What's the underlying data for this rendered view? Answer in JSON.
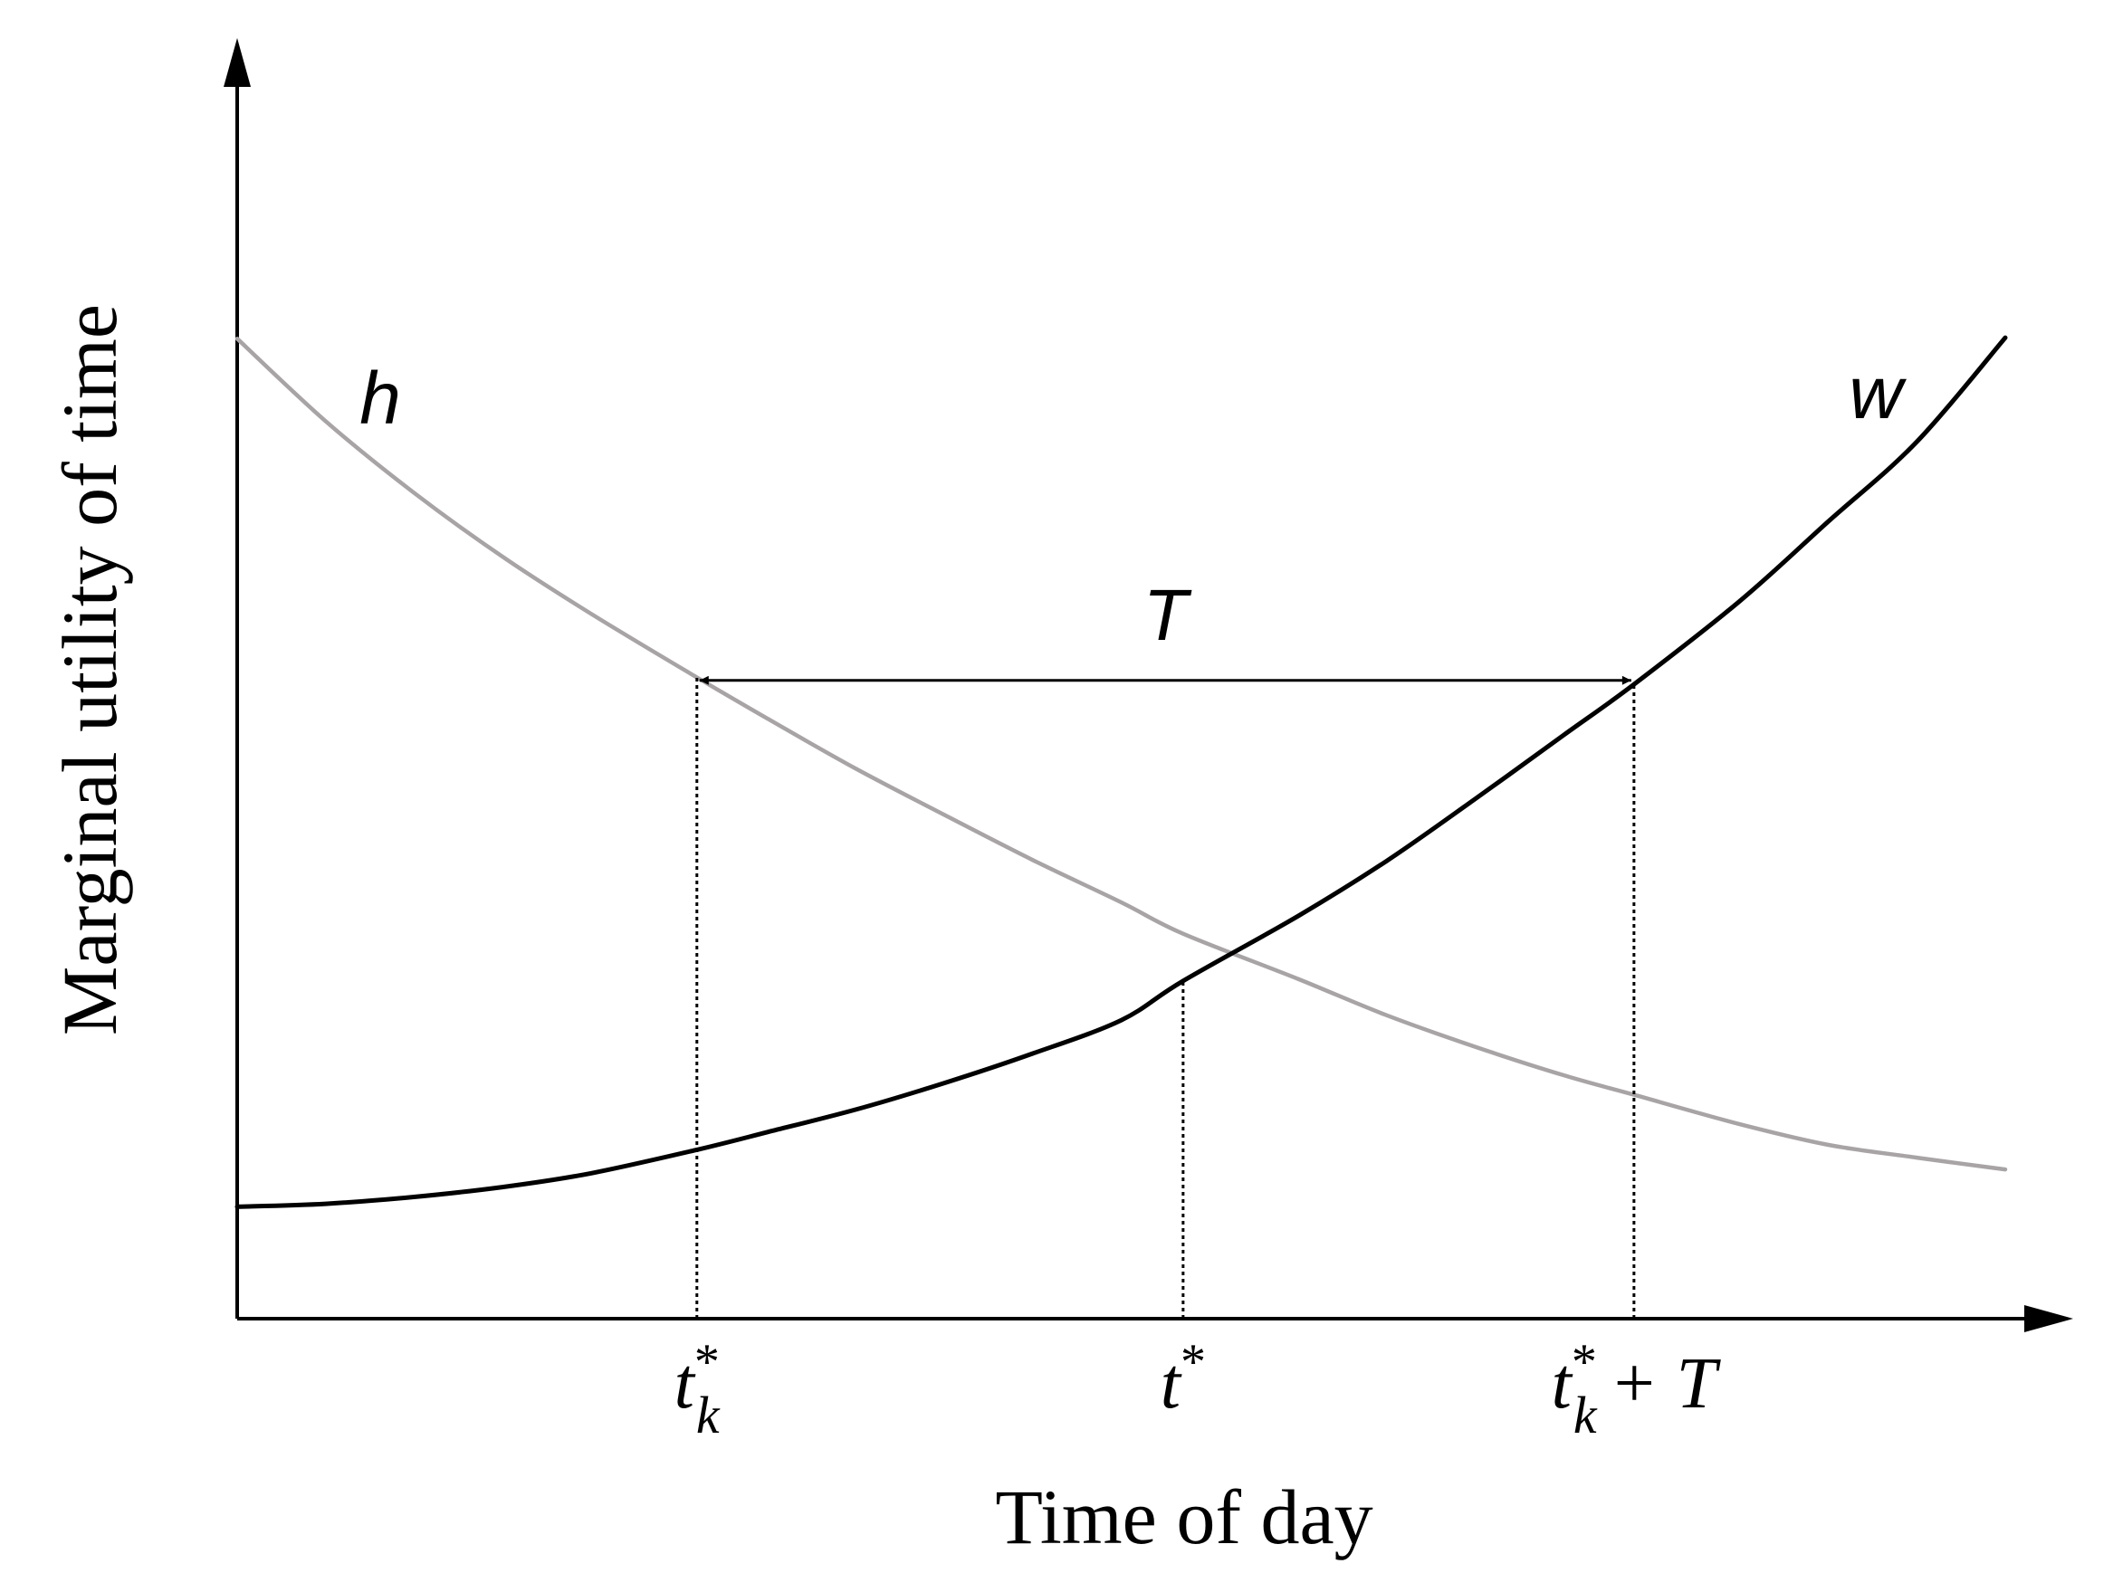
{
  "chart_data": {
    "type": "line",
    "xlabel": "Time of day",
    "ylabel": "Marginal utility of time",
    "xlim": [
      0,
      1
    ],
    "ylim": [
      0,
      1
    ],
    "grid": false,
    "series": [
      {
        "name": "h",
        "color": "#a8a4a6",
        "x": [
          0.0,
          0.05,
          0.1,
          0.15,
          0.2,
          0.26,
          0.3,
          0.35,
          0.4,
          0.45,
          0.5,
          0.535,
          0.6,
          0.65,
          0.7,
          0.75,
          0.79,
          0.85,
          0.9,
          0.95,
          1.0
        ],
        "y": [
          0.998,
          0.914,
          0.841,
          0.776,
          0.718,
          0.653,
          0.611,
          0.56,
          0.513,
          0.467,
          0.424,
          0.392,
          0.346,
          0.309,
          0.277,
          0.248,
          0.228,
          0.198,
          0.177,
          0.164,
          0.152
        ]
      },
      {
        "name": "w",
        "color": "#000000",
        "x": [
          0.0,
          0.05,
          0.1,
          0.15,
          0.2,
          0.26,
          0.3,
          0.35,
          0.4,
          0.45,
          0.5,
          0.535,
          0.6,
          0.65,
          0.7,
          0.75,
          0.79,
          0.85,
          0.9,
          0.95,
          1.0
        ],
        "y": [
          0.114,
          0.117,
          0.124,
          0.134,
          0.148,
          0.172,
          0.19,
          0.213,
          0.24,
          0.27,
          0.304,
          0.344,
          0.41,
          0.466,
          0.529,
          0.594,
          0.646,
          0.731,
          0.812,
          0.893,
          0.999
        ]
      }
    ],
    "markers": [
      {
        "label_base": "t",
        "label_sup": "*",
        "label_sub": "k",
        "label_tail": "",
        "x": 0.26,
        "y_curve": 0.653
      },
      {
        "label_base": "t",
        "label_sup": "*",
        "label_sub": "",
        "label_tail": "",
        "x": 0.535,
        "y_curve": 0.344
      },
      {
        "label_base": "t",
        "label_sup": "*",
        "label_sub": "k",
        "label_tail": "+ T",
        "x": 0.79,
        "y_curve": 0.646
      }
    ],
    "interval": {
      "label": "T",
      "x_from": 0.26,
      "x_to": 0.79,
      "y": 0.65
    }
  }
}
